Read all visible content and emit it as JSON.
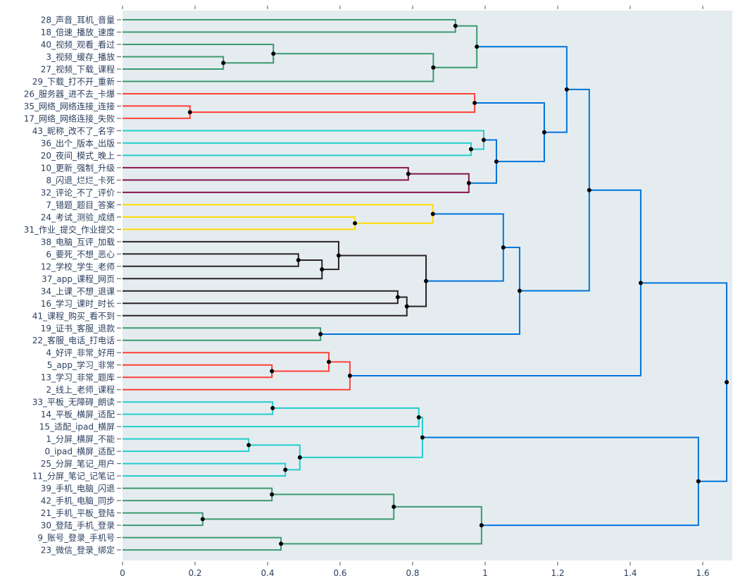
{
  "chart_data": {
    "type": "dendrogram",
    "orientation": "left-to-right",
    "xlim": [
      0,
      1.68
    ],
    "xticks": [
      0,
      0.2,
      0.4,
      0.6,
      0.8,
      1,
      1.2,
      1.4,
      1.6
    ],
    "xtick_labels": [
      "0",
      "0.2",
      "0.4",
      "0.6",
      "0.8",
      "1",
      "1.2",
      "1.4",
      "1.6"
    ],
    "grid": false,
    "background": "#e5ecf0",
    "colors": {
      "green": "#3d9970",
      "red": "#ff4136",
      "blue": "#0074d9",
      "cyan": "#23cdcd",
      "maroon": "#85144b",
      "yellow": "#ffdc00",
      "black": "#282323"
    },
    "leaves": [
      {
        "label": "28_声音_耳机_音量",
        "color": "green"
      },
      {
        "label": "18_倍速_播放_速度",
        "color": "green"
      },
      {
        "label": "40_视频_观看_看过",
        "color": "green"
      },
      {
        "label": "3_视频_缓存_播放",
        "color": "green"
      },
      {
        "label": "27_视频_下载_课程",
        "color": "green"
      },
      {
        "label": "29_下载_打不开_重新",
        "color": "green"
      },
      {
        "label": "26_服务器_进不去_卡爆",
        "color": "red"
      },
      {
        "label": "35_网络_网络连接_连接",
        "color": "red"
      },
      {
        "label": "17_网络_网络连接_失败",
        "color": "red"
      },
      {
        "label": "43_昵称_改不了_名字",
        "color": "cyan"
      },
      {
        "label": "36_出个_版本_出版",
        "color": "cyan"
      },
      {
        "label": "20_夜间_模式_晚上",
        "color": "cyan"
      },
      {
        "label": "10_更新_强制_升级",
        "color": "maroon"
      },
      {
        "label": "8_闪退_烂烂_卡死",
        "color": "maroon"
      },
      {
        "label": "32_评论_不了_评价",
        "color": "maroon"
      },
      {
        "label": "7_错题_题目_答案",
        "color": "yellow"
      },
      {
        "label": "24_考试_测验_成绩",
        "color": "yellow"
      },
      {
        "label": "31_作业_提交_作业提交",
        "color": "yellow"
      },
      {
        "label": "38_电脑_互评_加载",
        "color": "black"
      },
      {
        "label": "6_要死_不想_恶心",
        "color": "black"
      },
      {
        "label": "12_学校_学生_老师",
        "color": "black"
      },
      {
        "label": "37_app_课程_网页",
        "color": "black"
      },
      {
        "label": "34_上课_不想_退课",
        "color": "black"
      },
      {
        "label": "16_学习_课时_时长",
        "color": "black"
      },
      {
        "label": "41_课程_购买_看不到",
        "color": "black"
      },
      {
        "label": "19_证书_客服_退款",
        "color": "green"
      },
      {
        "label": "22_客服_电话_打电话",
        "color": "green"
      },
      {
        "label": "4_好评_非常_好用",
        "color": "red"
      },
      {
        "label": "5_app_学习_非常",
        "color": "red"
      },
      {
        "label": "13_学习_非常_题库",
        "color": "red"
      },
      {
        "label": "2_线上_老师_课程",
        "color": "red"
      },
      {
        "label": "33_平板_无障碍_朗读",
        "color": "cyan"
      },
      {
        "label": "14_平板_横屏_适配",
        "color": "cyan"
      },
      {
        "label": "15_适配_ipad_横屏",
        "color": "cyan"
      },
      {
        "label": "1_分屏_横屏_不能",
        "color": "cyan"
      },
      {
        "label": "0_ipad_横屏_适配",
        "color": "cyan"
      },
      {
        "label": "25_分屏_笔记_用户",
        "color": "cyan"
      },
      {
        "label": "11_分屏_笔记_记笔记",
        "color": "cyan"
      },
      {
        "label": "39_手机_电脑_闪退",
        "color": "green"
      },
      {
        "label": "42_手机_电脑_同步",
        "color": "green"
      },
      {
        "label": "21_手机_平板_登陆",
        "color": "green"
      },
      {
        "label": "30_登陆_手机_登录",
        "color": "green"
      },
      {
        "label": "9_账号_登录_手机号",
        "color": "green"
      },
      {
        "label": "23_微信_登录_绑定",
        "color": "green"
      }
    ],
    "merges": [
      {
        "id": "A",
        "left": 0,
        "right": 1,
        "height": 0.918,
        "color": "green"
      },
      {
        "id": "B",
        "left": 3,
        "right": 4,
        "height": 0.278,
        "color": "green"
      },
      {
        "id": "C",
        "left": 2,
        "right": "B",
        "height": 0.416,
        "color": "green"
      },
      {
        "id": "D",
        "left": "C",
        "right": 5,
        "height": 0.857,
        "color": "green"
      },
      {
        "id": "E",
        "left": "A",
        "right": "D",
        "height": 0.977,
        "color": "green"
      },
      {
        "id": "F",
        "left": 7,
        "right": 8,
        "height": 0.186,
        "color": "red"
      },
      {
        "id": "G",
        "left": 6,
        "right": "F",
        "height": 0.971,
        "color": "red"
      },
      {
        "id": "H",
        "left": 10,
        "right": 11,
        "height": 0.961,
        "color": "cyan"
      },
      {
        "id": "I",
        "left": 9,
        "right": "H",
        "height": 0.996,
        "color": "cyan"
      },
      {
        "id": "J",
        "left": 12,
        "right": 13,
        "height": 0.788,
        "color": "maroon"
      },
      {
        "id": "K",
        "left": "J",
        "right": 14,
        "height": 0.955,
        "color": "maroon"
      },
      {
        "id": "L",
        "left": "I",
        "right": "K",
        "height": 1.031,
        "color": "blue"
      },
      {
        "id": "M",
        "left": "G",
        "right": "L",
        "height": 1.163,
        "color": "blue"
      },
      {
        "id": "N",
        "left": "E",
        "right": "M",
        "height": 1.225,
        "color": "blue"
      },
      {
        "id": "O",
        "left": 16,
        "right": 17,
        "height": 0.641,
        "color": "yellow"
      },
      {
        "id": "P",
        "left": 15,
        "right": "O",
        "height": 0.856,
        "color": "yellow"
      },
      {
        "id": "Q",
        "left": 19,
        "right": 20,
        "height": 0.485,
        "color": "black"
      },
      {
        "id": "R",
        "left": "Q",
        "right": 21,
        "height": 0.55,
        "color": "black"
      },
      {
        "id": "S",
        "left": 18,
        "right": "R",
        "height": 0.596,
        "color": "black"
      },
      {
        "id": "T",
        "left": 22,
        "right": 23,
        "height": 0.759,
        "color": "black"
      },
      {
        "id": "U",
        "left": "T",
        "right": 24,
        "height": 0.784,
        "color": "black"
      },
      {
        "id": "V",
        "left": "S",
        "right": "U",
        "height": 0.837,
        "color": "black"
      },
      {
        "id": "W",
        "left": "P",
        "right": "V",
        "height": 1.05,
        "color": "blue"
      },
      {
        "id": "X",
        "left": 25,
        "right": 26,
        "height": 0.546,
        "color": "green"
      },
      {
        "id": "Y",
        "left": "W",
        "right": "X",
        "height": 1.095,
        "color": "blue"
      },
      {
        "id": "Z",
        "left": "N",
        "right": "Y",
        "height": 1.287,
        "color": "blue"
      },
      {
        "id": "AA",
        "left": 28,
        "right": 29,
        "height": 0.412,
        "color": "red"
      },
      {
        "id": "AB",
        "left": 27,
        "right": "AA",
        "height": 0.569,
        "color": "red"
      },
      {
        "id": "AC",
        "left": "AB",
        "right": 30,
        "height": 0.627,
        "color": "red"
      },
      {
        "id": "AD",
        "left": "Z",
        "right": "AC",
        "height": 1.429,
        "color": "blue"
      },
      {
        "id": "AE",
        "left": 31,
        "right": 32,
        "height": 0.414,
        "color": "cyan"
      },
      {
        "id": "AF",
        "left": "AE",
        "right": 33,
        "height": 0.817,
        "color": "cyan"
      },
      {
        "id": "AG",
        "left": 34,
        "right": 35,
        "height": 0.348,
        "color": "cyan"
      },
      {
        "id": "AH",
        "left": 36,
        "right": 37,
        "height": 0.449,
        "color": "cyan"
      },
      {
        "id": "AI",
        "left": "AG",
        "right": "AH",
        "height": 0.489,
        "color": "cyan"
      },
      {
        "id": "AJ",
        "left": "AF",
        "right": "AI",
        "height": 0.827,
        "color": "cyan"
      },
      {
        "id": "AK",
        "left": 38,
        "right": 39,
        "height": 0.412,
        "color": "green"
      },
      {
        "id": "AL",
        "left": 40,
        "right": 41,
        "height": 0.221,
        "color": "green"
      },
      {
        "id": "AM",
        "left": "AK",
        "right": "AL",
        "height": 0.748,
        "color": "green"
      },
      {
        "id": "AN",
        "left": 42,
        "right": 43,
        "height": 0.437,
        "color": "green"
      },
      {
        "id": "AO",
        "left": "AM",
        "right": "AN",
        "height": 0.99,
        "color": "green"
      },
      {
        "id": "AP",
        "left": "AJ",
        "right": "AO",
        "height": 1.588,
        "color": "blue"
      },
      {
        "id": "AQ",
        "left": "AD",
        "right": "AP",
        "height": 1.666,
        "color": "blue"
      }
    ]
  }
}
